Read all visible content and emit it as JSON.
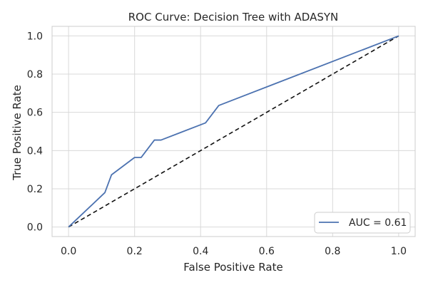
{
  "chart_data": {
    "type": "line",
    "title": "ROC Curve: Decision Tree with ADASYN",
    "xlabel": "False Positive Rate",
    "ylabel": "True Positive Rate",
    "xlim": [
      -0.05,
      1.05
    ],
    "ylim": [
      -0.05,
      1.05
    ],
    "xticks": [
      0.0,
      0.2,
      0.4,
      0.6,
      0.8,
      1.0
    ],
    "yticks": [
      0.0,
      0.2,
      0.4,
      0.6,
      0.8,
      1.0
    ],
    "xtick_labels": [
      "0.0",
      "0.2",
      "0.4",
      "0.6",
      "0.8",
      "1.0"
    ],
    "ytick_labels": [
      "0.0",
      "0.2",
      "0.4",
      "0.6",
      "0.8",
      "1.0"
    ],
    "grid": true,
    "legend_position": "lower-right",
    "series": [
      {
        "name": "AUC = 0.61",
        "color": "#4c72b0",
        "style": "solid",
        "x": [
          0.0,
          0.11,
          0.13,
          0.2,
          0.22,
          0.26,
          0.28,
          0.415,
          0.455,
          1.0
        ],
        "y": [
          0.0,
          0.18,
          0.273,
          0.364,
          0.364,
          0.455,
          0.455,
          0.545,
          0.636,
          1.0
        ]
      },
      {
        "color": "#111111",
        "style": "dashed",
        "x": [
          0.0,
          1.0
        ],
        "y": [
          0.0,
          1.0
        ]
      }
    ]
  }
}
